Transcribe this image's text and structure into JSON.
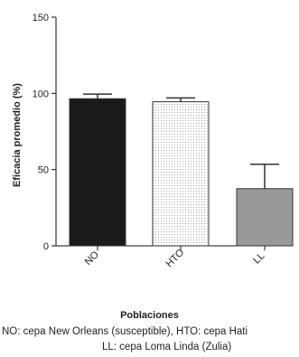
{
  "chart_data": {
    "type": "bar",
    "categories": [
      "NO",
      "HTO",
      "LL"
    ],
    "values": [
      96.5,
      94.5,
      37.5
    ],
    "errors": [
      3,
      2.5,
      16
    ],
    "ylabel": "Eficacia promedio (%)",
    "xlabel": "Poblaciones",
    "ylim": [
      0,
      150
    ],
    "yticks": [
      "0",
      "50",
      "100",
      "150"
    ],
    "grid": false,
    "bar_styles": [
      {
        "fill": "#1a1a1a",
        "pattern": "solid"
      },
      {
        "fill": "#ffffff",
        "pattern": "dotted"
      },
      {
        "fill": "#999999",
        "pattern": "solid"
      }
    ]
  },
  "caption": {
    "line1": "NO: cepa New Orleans (susceptible),  HTO: cepa Hati",
    "line2": "LL: cepa Loma Linda (Zulia)"
  }
}
